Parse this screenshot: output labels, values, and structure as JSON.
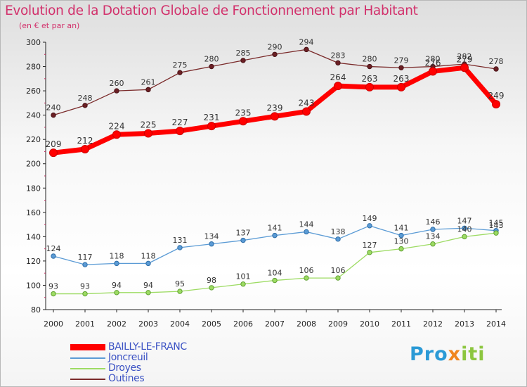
{
  "title": "Evolution de la Dotation Globale de Fonctionnement par Habitant",
  "subtitle": "(en € et par an)",
  "logo": {
    "part1": "Pro",
    "part2": "x",
    "part3": "iti"
  },
  "chart_data": {
    "type": "line",
    "title": "Evolution de la Dotation Globale de Fonctionnement par Habitant",
    "ylabel": "(en € et par an)",
    "xlabel": "",
    "ylim": [
      80,
      300
    ],
    "yticks": [
      80,
      100,
      120,
      140,
      160,
      180,
      200,
      220,
      240,
      260,
      280,
      300
    ],
    "grid": false,
    "legend_position": "bottom-left",
    "x": [
      "2000",
      "2001",
      "2002",
      "2003",
      "2004",
      "2005",
      "2006",
      "2007",
      "2008",
      "2009",
      "2010",
      "2011",
      "2012",
      "2013",
      "2014"
    ],
    "series": [
      {
        "name": "BAILLY-LE-FRANC",
        "color": "#ff0000",
        "values": [
          209,
          212,
          224,
          225,
          227,
          231,
          235,
          239,
          243,
          264,
          263,
          263,
          276,
          279,
          249
        ],
        "labels": [
          "209",
          "212",
          "224",
          "225",
          "227",
          "231",
          "235",
          "239",
          "243",
          "264",
          "263",
          "263",
          "276",
          "279",
          "249"
        ]
      },
      {
        "name": "Joncreuil",
        "color": "#5b9bd5",
        "values": [
          124,
          117,
          118,
          118,
          131,
          134,
          137,
          141,
          144,
          138,
          149,
          141,
          146,
          147,
          145
        ],
        "labels": [
          "124",
          "117",
          "118",
          "118",
          "131",
          "134",
          "137",
          "141",
          "144",
          "138",
          "149",
          "141",
          "146",
          "147",
          "145"
        ]
      },
      {
        "name": "Droyes",
        "color": "#98d860",
        "values": [
          93,
          93,
          94,
          94,
          95,
          98,
          101,
          104,
          106,
          106,
          127,
          130,
          134,
          140,
          143
        ],
        "labels": [
          "93",
          "93",
          "94",
          "94",
          "95",
          "98",
          "101",
          "104",
          "106",
          "106",
          "127",
          "130",
          "134",
          "140",
          "143"
        ]
      },
      {
        "name": "Outines",
        "color": "#7a2a2a",
        "values": [
          240,
          248,
          260,
          261,
          275,
          280,
          285,
          290,
          294,
          283,
          280,
          279,
          280,
          282,
          278
        ],
        "labels": [
          "240",
          "248",
          "260",
          "261",
          "275",
          "280",
          "285",
          "290",
          "294",
          "283",
          "280",
          "279",
          "280",
          "282",
          "278"
        ]
      }
    ]
  }
}
